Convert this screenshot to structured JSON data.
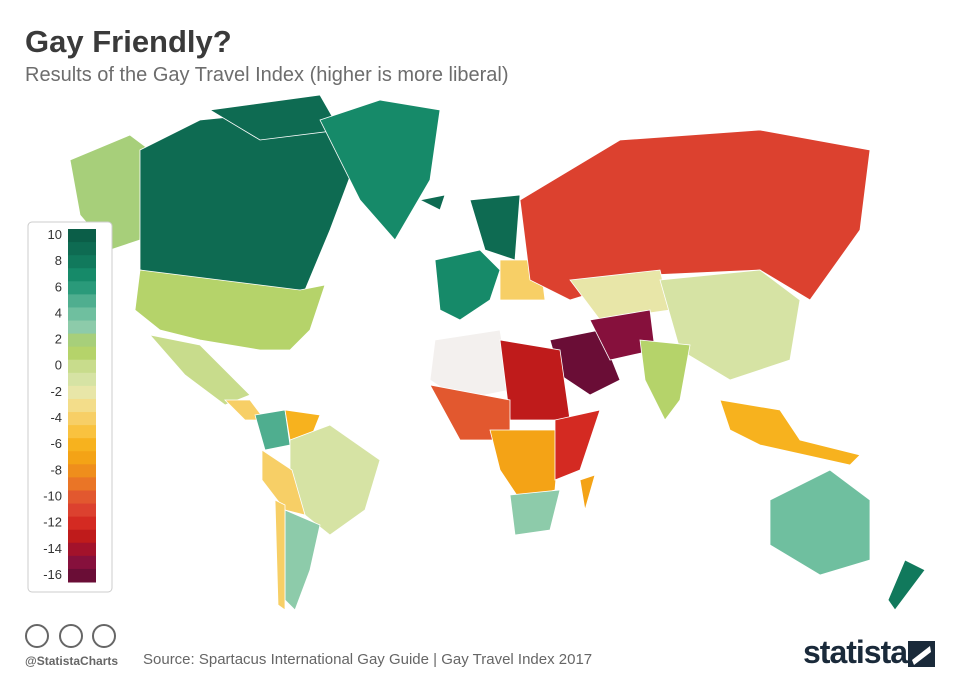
{
  "header": {
    "title": "Gay Friendly?",
    "subtitle": "Results of the Gay Travel Index (higher is more liberal)"
  },
  "legend": {
    "labels": [
      10,
      8,
      6,
      4,
      2,
      0,
      -2,
      -4,
      -6,
      -8,
      -10,
      -12,
      -14,
      -16
    ],
    "colors": [
      "#0b5e48",
      "#0e6b52",
      "#11795c",
      "#168a69",
      "#2a9a7a",
      "#4fae8f",
      "#6fbf9f",
      "#8dcbaa",
      "#a7cf7a",
      "#b5d36a",
      "#c8dc8c",
      "#d6e3a4",
      "#e8e6a8",
      "#f3dd8a",
      "#f7cf66",
      "#f9c23f",
      "#f7b21e",
      "#f4a316",
      "#ef8e1c",
      "#ea7526",
      "#e2582f",
      "#dc412f",
      "#d42a22",
      "#bf1b1b",
      "#a3122b",
      "#86103c",
      "#6a0d36"
    ]
  },
  "footer": {
    "handle": "@StatistaCharts",
    "source": "Source: Spartacus International Gay Guide | Gay Travel Index 2017",
    "brand": "statista"
  }
}
